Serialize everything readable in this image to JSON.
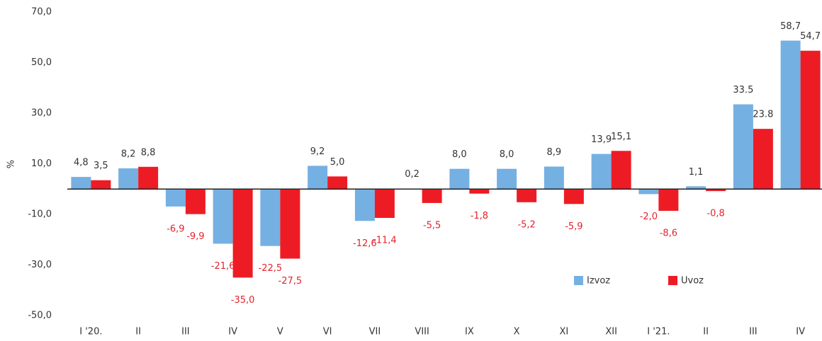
{
  "chart_data": {
    "type": "bar",
    "y_label": "%",
    "categories": [
      "I '20.",
      "II",
      "III",
      "IV",
      "V",
      "VI",
      "VII",
      "VIII",
      "IX",
      "X",
      "XI",
      "XII",
      "I '21.",
      "II",
      "III",
      "IV"
    ],
    "series": [
      {
        "name": "Izvoz",
        "color": "#75b0e3",
        "values": [
          4.8,
          8.2,
          -6.9,
          -21.6,
          -22.5,
          9.2,
          -12.6,
          0.2,
          8.0,
          8.0,
          8.9,
          13.9,
          -2.0,
          1.1,
          33.5,
          58.7
        ],
        "value_labels": [
          "4,8",
          "8,2",
          "-6,9",
          "-21,6",
          "-22,5",
          "9,2",
          "-12,6",
          "0,2",
          "8,0",
          "8,0",
          "8,9",
          "13,9",
          "-2,0",
          "1,1",
          "33.5",
          "58,7"
        ]
      },
      {
        "name": "Uvoz",
        "color": "#ed1c24",
        "values": [
          3.5,
          8.8,
          -9.9,
          -35.0,
          -27.5,
          5.0,
          -11.4,
          -5.5,
          -1.8,
          -5.2,
          -5.9,
          15.1,
          -8.6,
          -0.8,
          23.8,
          54.7
        ],
        "value_labels": [
          "3,5",
          "8,8",
          "-9,9",
          "-35,0",
          "-27,5",
          "5,0",
          "-11,4",
          "-5,5",
          "-1,8",
          "-5,2",
          "-5,9",
          "15,1",
          "-8,6",
          "-0,8",
          "23.8",
          "54,7"
        ]
      }
    ],
    "ylim": [
      -50,
      70
    ],
    "yticks": [
      {
        "value": 70,
        "label": "70,0"
      },
      {
        "value": 50,
        "label": "50,0"
      },
      {
        "value": 30,
        "label": "30,0"
      },
      {
        "value": 10,
        "label": "10,0"
      },
      {
        "value": -10,
        "label": "-10,0"
      },
      {
        "value": -30,
        "label": "-30,0"
      },
      {
        "value": -50,
        "label": "-50,0"
      }
    ],
    "grid": false,
    "legend": "bottom-right"
  }
}
